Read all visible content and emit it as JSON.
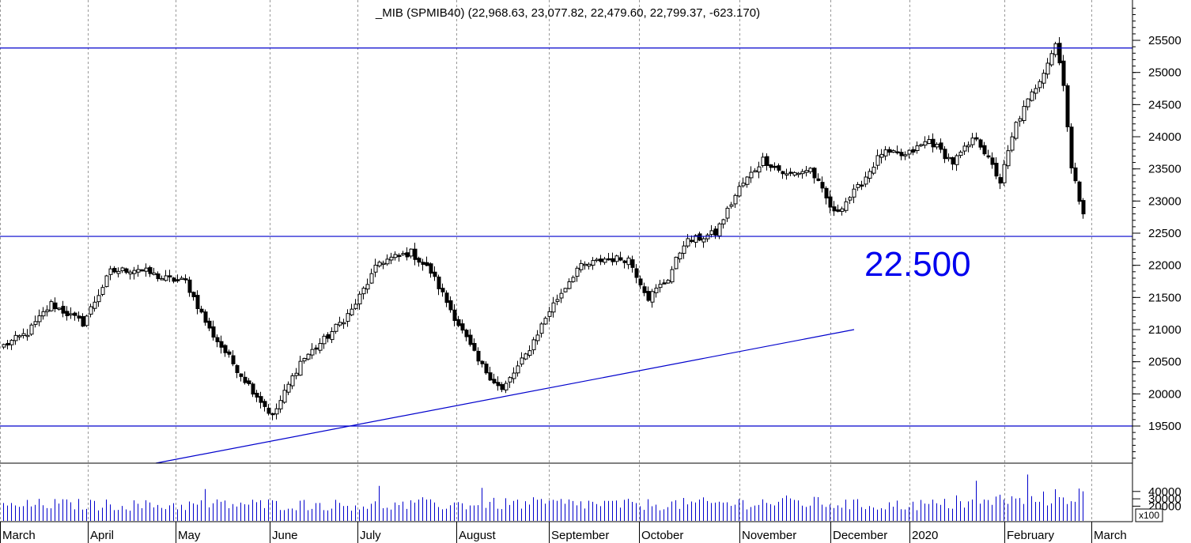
{
  "chart_data": {
    "type": "candlestick",
    "title": "_MIB (SPMIB40) (22,968.63, 23,077.82, 22,479.60, 22,799.37, -623.170)",
    "annotation": "22.500",
    "volume_multiplier_label": "x100",
    "price_axis": {
      "ylim": [
        19000,
        26000
      ],
      "ticks": [
        "25500",
        "25000",
        "24500",
        "24000",
        "23500",
        "23000",
        "22500",
        "22000",
        "21500",
        "21000",
        "20500",
        "20000",
        "19500"
      ],
      "tick_values": [
        25500,
        25000,
        24500,
        24000,
        23500,
        23000,
        22500,
        22000,
        21500,
        21000,
        20500,
        20000,
        19500
      ]
    },
    "volume_axis": {
      "ticks": [
        "40000",
        "30000",
        "20000"
      ],
      "tick_values": [
        40000,
        30000,
        20000
      ]
    },
    "months": [
      "March",
      "April",
      "May",
      "June",
      "July",
      "August",
      "September",
      "October",
      "November",
      "December",
      "2020",
      "February",
      "March"
    ],
    "horizontal_lines": [
      25380,
      22450,
      19500
    ],
    "trendline": {
      "from": [
        "2019-04-20",
        18950
      ],
      "to": [
        "2019-12-15",
        21000
      ]
    },
    "colors": {
      "lines": "#0000cc",
      "annotation": "#0000ee",
      "volume": "#0000cc",
      "candles": "#000000"
    },
    "anchors": [
      {
        "i": 0,
        "c": 20750
      },
      {
        "i": 6,
        "c": 20950
      },
      {
        "i": 12,
        "c": 21400
      },
      {
        "i": 20,
        "c": 21100
      },
      {
        "i": 27,
        "c": 21900
      },
      {
        "i": 34,
        "c": 21950
      },
      {
        "i": 40,
        "c": 21800
      },
      {
        "i": 46,
        "c": 21750
      },
      {
        "i": 52,
        "c": 21000
      },
      {
        "i": 60,
        "c": 20300
      },
      {
        "i": 68,
        "c": 19650
      },
      {
        "i": 75,
        "c": 20500
      },
      {
        "i": 82,
        "c": 20900
      },
      {
        "i": 88,
        "c": 21300
      },
      {
        "i": 95,
        "c": 22050
      },
      {
        "i": 103,
        "c": 22200
      },
      {
        "i": 108,
        "c": 21900
      },
      {
        "i": 114,
        "c": 21200
      },
      {
        "i": 120,
        "c": 20500
      },
      {
        "i": 126,
        "c": 20050
      },
      {
        "i": 132,
        "c": 20600
      },
      {
        "i": 138,
        "c": 21300
      },
      {
        "i": 145,
        "c": 21950
      },
      {
        "i": 152,
        "c": 22100
      },
      {
        "i": 158,
        "c": 22100
      },
      {
        "i": 163,
        "c": 21500
      },
      {
        "i": 168,
        "c": 21800
      },
      {
        "i": 172,
        "c": 22350
      },
      {
        "i": 180,
        "c": 22500
      },
      {
        "i": 186,
        "c": 23200
      },
      {
        "i": 192,
        "c": 23650
      },
      {
        "i": 198,
        "c": 23400
      },
      {
        "i": 204,
        "c": 23500
      },
      {
        "i": 210,
        "c": 22800
      },
      {
        "i": 216,
        "c": 23200
      },
      {
        "i": 222,
        "c": 23750
      },
      {
        "i": 228,
        "c": 23700
      },
      {
        "i": 234,
        "c": 23950
      },
      {
        "i": 240,
        "c": 23600
      },
      {
        "i": 246,
        "c": 24000
      },
      {
        "i": 252,
        "c": 23300
      },
      {
        "i": 256,
        "c": 24200
      },
      {
        "i": 262,
        "c": 24900
      },
      {
        "i": 266,
        "c": 25450
      },
      {
        "i": 268,
        "c": 24850
      },
      {
        "i": 270,
        "c": 23500
      },
      {
        "i": 273,
        "c": 22800
      }
    ],
    "volume_anchors": [
      {
        "i": 0,
        "v": 20000
      },
      {
        "i": 10,
        "v": 24000
      },
      {
        "i": 40,
        "v": 22000
      },
      {
        "i": 60,
        "v": 24000
      },
      {
        "i": 80,
        "v": 23000
      },
      {
        "i": 100,
        "v": 22000
      },
      {
        "i": 120,
        "v": 24000
      },
      {
        "i": 140,
        "v": 25000
      },
      {
        "i": 160,
        "v": 23000
      },
      {
        "i": 180,
        "v": 25000
      },
      {
        "i": 200,
        "v": 27000
      },
      {
        "i": 220,
        "v": 22000
      },
      {
        "i": 240,
        "v": 24000
      },
      {
        "i": 260,
        "v": 30000
      },
      {
        "i": 273,
        "v": 38000
      }
    ]
  }
}
